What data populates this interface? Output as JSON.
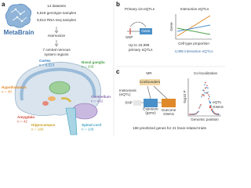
{
  "panels": {
    "a": "a",
    "b": "b",
    "c": "c"
  },
  "a": {
    "logo": "MetaBrain",
    "steps": [
      "14 datasets",
      "6,518 genotype samples",
      "8,613 RNA-seq samples"
    ],
    "harmonize": "Harmonize",
    "regions_lines": [
      "7 central nervous",
      "system regions"
    ],
    "regions": [
      {
        "name": "Cortex",
        "n": "n = 6,523",
        "color": "#2b7bbf"
      },
      {
        "name": "Basal ganglia",
        "n": "n = 208",
        "color": "#4aa04a"
      },
      {
        "name": "Hypothalamus",
        "n": "n = 40",
        "color": "#e0892a"
      },
      {
        "name": "Amygdala",
        "n": "n = 42",
        "color": "#d04a3a"
      },
      {
        "name": "Hippocampus",
        "n": "n = 168",
        "color": "#c9a020"
      },
      {
        "name": "Cerebellum",
        "n": "n = 492",
        "color": "#8a6bb0"
      },
      {
        "name": "Spinal cord",
        "n": "n = 108",
        "color": "#3a9fc0"
      }
    ]
  },
  "b": {
    "primary_title": "Primary cis-eQTLs",
    "snp": "SNP",
    "gene": "Gene",
    "primary_lines": [
      "Up to 16,989",
      "primary eQTLs"
    ],
    "interaction_title": "Interaction eQTLs",
    "y_label": "Gene",
    "x_label": "Cell type proportion",
    "interaction_count": "4,095 interaction eQTLs"
  },
  "c": {
    "mr": "MR",
    "confounders": "Confounders",
    "instrument_lines": [
      "Instrument",
      "(eQTL)"
    ],
    "snp": "SNP",
    "exposure_lines": [
      "Exposure",
      "(gene)"
    ],
    "outcome": "Outcome",
    "gwas_label": "GWAS",
    "coloc": "Co-localization",
    "legend": [
      "eQTL",
      "GWAS"
    ],
    "y_label": "-log10 P",
    "x_label": "Genomic position",
    "footer": "168 prioritized genes for 21 brain-related traits"
  }
}
